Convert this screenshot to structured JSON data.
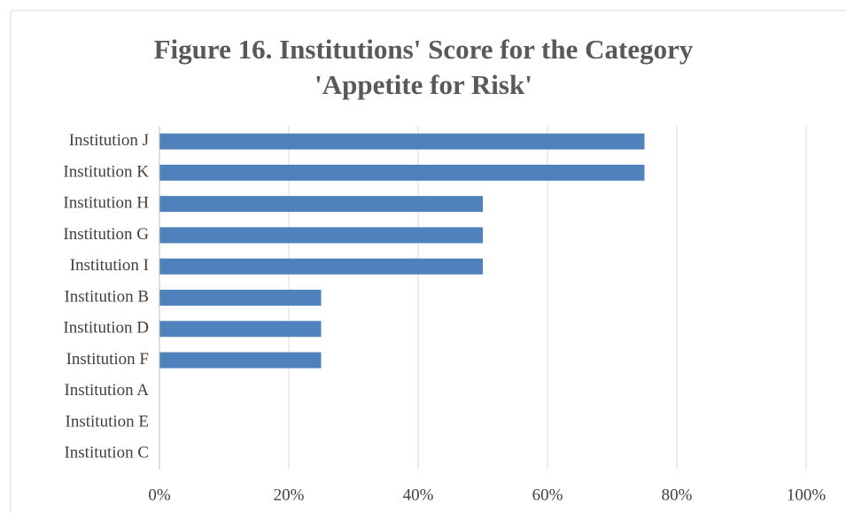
{
  "chart_data": {
    "type": "bar",
    "orientation": "horizontal",
    "title": "Figure 16. Institutions' Score for the Category 'Appetite for Risk'",
    "categories": [
      "Institution J",
      "Institution K",
      "Institution H",
      "Institution G",
      "Institution I",
      "Institution B",
      "Institution D",
      "Institution F",
      "Institution A",
      "Institution E",
      "Institution C"
    ],
    "values": [
      75,
      75,
      50,
      50,
      50,
      25,
      25,
      25,
      0,
      0,
      0
    ],
    "color": "#4f81bd",
    "xlim": [
      0,
      100
    ],
    "xticks": [
      {
        "value": 0,
        "label": "0%"
      },
      {
        "value": 20,
        "label": "20%"
      },
      {
        "value": 40,
        "label": "40%"
      },
      {
        "value": 60,
        "label": "60%"
      },
      {
        "value": 80,
        "label": "80%"
      },
      {
        "value": 100,
        "label": "100%"
      }
    ],
    "grid": true
  }
}
